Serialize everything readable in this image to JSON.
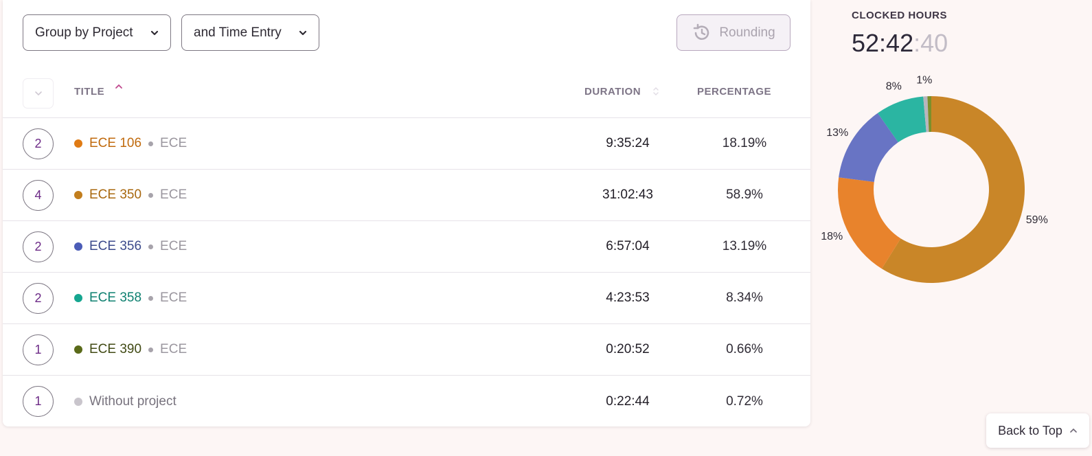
{
  "toolbar": {
    "group_label": "Group by Project",
    "subgroup_label": "and Time Entry",
    "rounding_label": "Rounding"
  },
  "table": {
    "headers": {
      "title": "TITLE",
      "duration": "DURATION",
      "percentage": "PERCENTAGE"
    },
    "sort": {
      "column": "title",
      "direction": "ascending"
    },
    "rows": [
      {
        "count": "2",
        "project": "ECE 106",
        "client": "ECE",
        "duration": "9:35:24",
        "percentage": "18.19%",
        "color": "#e07b14",
        "text_color": "#c06a0d"
      },
      {
        "count": "4",
        "project": "ECE 350",
        "client": "ECE",
        "duration": "31:02:43",
        "percentage": "58.9%",
        "color": "#c27e1e",
        "text_color": "#a8680f"
      },
      {
        "count": "2",
        "project": "ECE 356",
        "client": "ECE",
        "duration": "6:57:04",
        "percentage": "13.19%",
        "color": "#4b5cb7",
        "text_color": "#3c4a8c"
      },
      {
        "count": "2",
        "project": "ECE 358",
        "client": "ECE",
        "duration": "4:23:53",
        "percentage": "8.34%",
        "color": "#16a690",
        "text_color": "#0e8070"
      },
      {
        "count": "1",
        "project": "ECE 390",
        "client": "ECE",
        "duration": "0:20:52",
        "percentage": "0.66%",
        "color": "#5a6a19",
        "text_color": "#414a14"
      },
      {
        "count": "1",
        "project": "Without project",
        "client": "",
        "duration": "0:22:44",
        "percentage": "0.72%",
        "color": "#c9c5cc",
        "text_color": "#77727d"
      }
    ]
  },
  "summary": {
    "title": "CLOCKED HOURS",
    "hours_minutes": "52:42",
    "seconds": ":40"
  },
  "chart_data": {
    "type": "pie",
    "donut": true,
    "categories": [
      "ECE 350",
      "ECE 106",
      "ECE 356",
      "ECE 358",
      "Without project",
      "ECE 390"
    ],
    "values": [
      58.9,
      18.19,
      13.19,
      8.34,
      0.72,
      0.66
    ],
    "labels": [
      "59%",
      "18%",
      "13%",
      "8%",
      "1%",
      ""
    ],
    "colors": [
      "#c98628",
      "#e8832c",
      "#6874c4",
      "#2bb5a2",
      "#b9b5bd",
      "#7d8f2a"
    ]
  },
  "back_to_top": {
    "label": "Back to Top"
  }
}
